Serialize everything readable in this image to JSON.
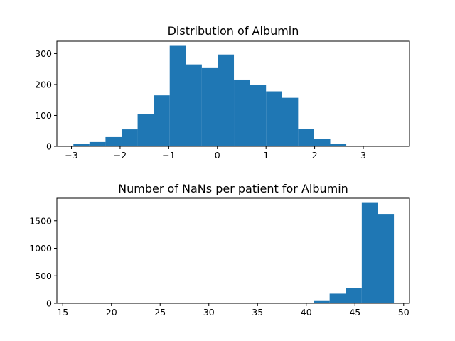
{
  "colors": {
    "bar": "#1f77b4",
    "axis": "#000000",
    "background": "#ffffff"
  },
  "chart_data": [
    {
      "type": "bar",
      "title": "Distribution of Albumin",
      "xlabel": "",
      "ylabel": "",
      "xlim": [
        -3.3,
        3.95
      ],
      "ylim": [
        0,
        340
      ],
      "xticks": [
        -3,
        -2,
        -1,
        0,
        1,
        2,
        3
      ],
      "xtick_labels": [
        "−3",
        "−2",
        "−1",
        "0",
        "1",
        "2",
        "3"
      ],
      "yticks": [
        0,
        100,
        200,
        300
      ],
      "ytick_labels": [
        "0",
        "100",
        "200",
        "300"
      ],
      "bin_edges": [
        -2.96,
        -2.63,
        -2.3,
        -1.97,
        -1.64,
        -1.31,
        -0.98,
        -0.65,
        -0.32,
        0.01,
        0.34,
        0.67,
        1.0,
        1.33,
        1.66,
        1.99,
        2.32,
        2.65,
        2.98,
        3.31,
        3.64
      ],
      "values": [
        8,
        14,
        30,
        55,
        105,
        165,
        325,
        265,
        253,
        297,
        216,
        198,
        178,
        157,
        57,
        25,
        8,
        1,
        1,
        1
      ]
    },
    {
      "type": "bar",
      "title": "Number of NaNs per patient for Albumin",
      "xlabel": "",
      "ylabel": "",
      "xlim": [
        14.4,
        50.6
      ],
      "ylim": [
        0,
        1910
      ],
      "xticks": [
        15,
        20,
        25,
        30,
        35,
        40,
        45,
        50
      ],
      "xtick_labels": [
        "15",
        "20",
        "25",
        "30",
        "35",
        "40",
        "45",
        "50"
      ],
      "yticks": [
        0,
        500,
        1000,
        1500
      ],
      "ytick_labels": [
        "0",
        "500",
        "1000",
        "1500"
      ],
      "bin_edges": [
        16.0,
        17.65,
        19.3,
        20.95,
        22.6,
        24.25,
        25.9,
        27.55,
        29.2,
        30.85,
        32.5,
        34.15,
        35.8,
        37.45,
        39.1,
        40.75,
        42.4,
        44.05,
        45.7,
        47.35,
        49.0
      ],
      "values": [
        1,
        0,
        0,
        0,
        1,
        0,
        0,
        1,
        0,
        1,
        1,
        1,
        2,
        8,
        4,
        55,
        175,
        275,
        1825,
        1625
      ]
    }
  ]
}
